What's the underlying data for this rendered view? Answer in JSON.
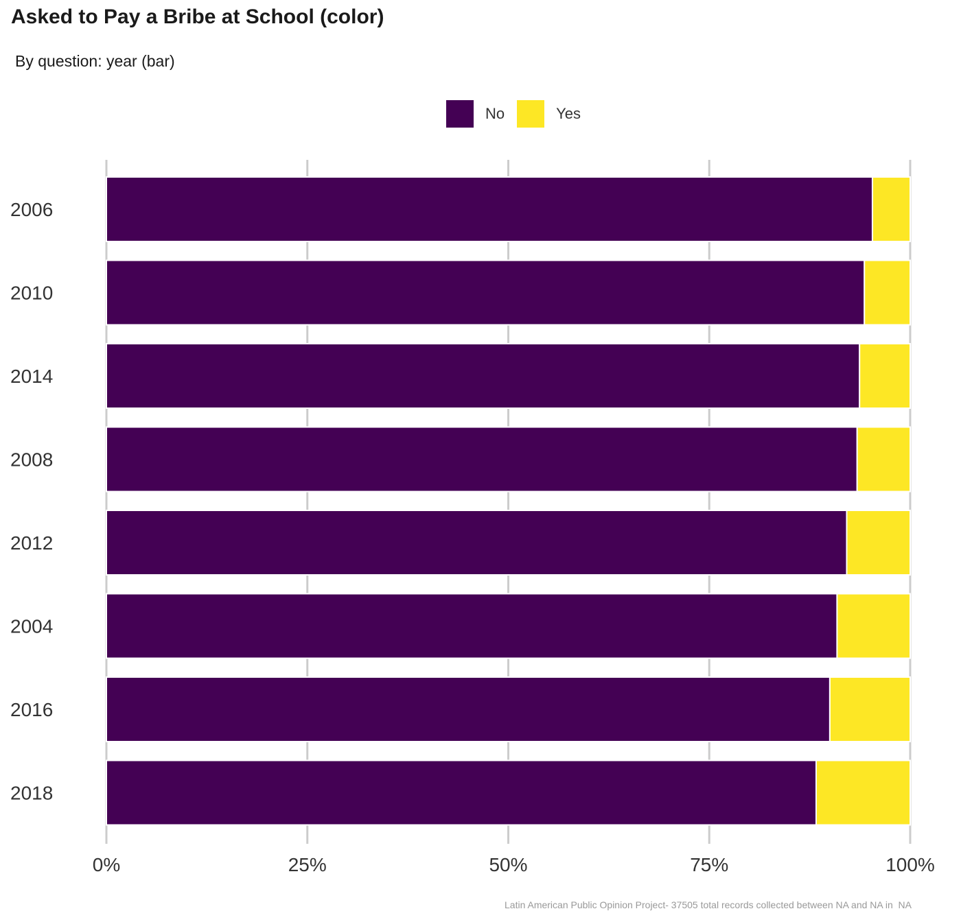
{
  "title": "Asked to Pay a Bribe at School (color)",
  "subtitle": "By question: year (bar)",
  "caption": "Latin American Public Opinion Project- 37505 total records collected between NA and NA in  NA",
  "colors": {
    "no": "#440154",
    "yes": "#FDE725",
    "grid": "#cccccc",
    "axis_text": "#333333"
  },
  "legend": [
    {
      "label": "No",
      "color": "#440154"
    },
    {
      "label": "Yes",
      "color": "#FDE725"
    }
  ],
  "chart_data": {
    "type": "bar",
    "orientation": "horizontal",
    "stacked": true,
    "title": "Asked to Pay a Bribe at School (color)",
    "subtitle": "By question: year (bar)",
    "xlabel": "",
    "ylabel": "",
    "xlim": [
      0,
      100
    ],
    "x_ticks": [
      0,
      25,
      50,
      75,
      100
    ],
    "x_tick_labels": [
      "0%",
      "25%",
      "50%",
      "75%",
      "100%"
    ],
    "categories": [
      "2006",
      "2010",
      "2014",
      "2008",
      "2012",
      "2004",
      "2016",
      "2018"
    ],
    "series": [
      {
        "name": "No",
        "color": "#440154",
        "values": [
          95.3,
          94.3,
          93.7,
          93.4,
          92.1,
          90.9,
          90.0,
          88.3
        ]
      },
      {
        "name": "Yes",
        "color": "#FDE725",
        "values": [
          4.7,
          5.7,
          6.3,
          6.6,
          7.9,
          9.1,
          10.0,
          11.7
        ]
      }
    ],
    "legend_position": "top",
    "grid": "vertical"
  }
}
